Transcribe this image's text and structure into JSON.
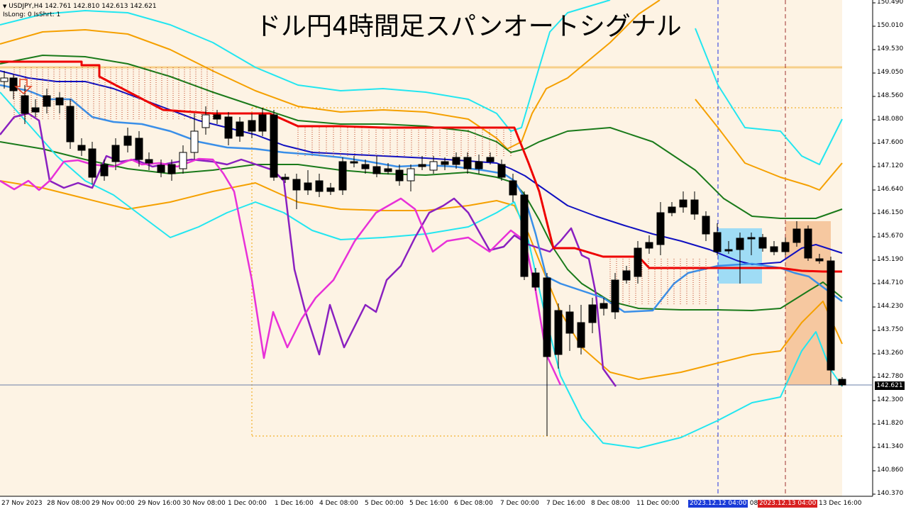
{
  "header": {
    "symbol_line": "USDJPY,H4  142.761 142.810 142.613 142.621",
    "flags_line": "IsLong: 0 IsShrt: 1",
    "title": "ドル円4時間足スパンオートシグナル"
  },
  "price_axis": {
    "labels": [
      "150.490",
      "150.010",
      "149.530",
      "149.050",
      "148.560",
      "148.080",
      "147.600",
      "147.120",
      "146.640",
      "146.150",
      "145.670",
      "145.190",
      "144.710",
      "144.230",
      "143.750",
      "143.260",
      "142.780",
      "142.300",
      "141.820",
      "141.340",
      "140.860",
      "140.370"
    ],
    "current_price": "142.621"
  },
  "time_axis": {
    "labels": [
      "27 Nov 2023",
      "28 Nov 08:00",
      "29 Nov 00:00",
      "29 Nov 16:00",
      "30 Nov 08:00",
      "1 Dec 00:00",
      "1 Dec 16:00",
      "4 Dec 08:00",
      "5 Dec 00:00",
      "5 Dec 16:00",
      "6 Dec 08:00",
      "7 Dec 00:00",
      "7 Dec 16:00",
      "8 Dec 08:00",
      "11 Dec 00:00",
      "11",
      "c 08",
      "13 Dec 16:00"
    ],
    "marker_blue": "2023.12.12 04:00",
    "marker_red": "2023.12.13 04:00"
  },
  "colors": {
    "background": "#fdf3e4",
    "bull_candle": "#ffffff",
    "bear_candle": "#000000",
    "conversion_red": "#ee0000",
    "ma_blue": "#1010c0",
    "ma_lightblue": "#3a8fe8",
    "band_green": "#1a7a1a",
    "band_orange": "#f5a000",
    "band_cyan": "#22e6f0",
    "oscillator_purple": "#8a20c0",
    "oscillator_magenta": "#e830d8",
    "box_blue": "#9fdcf5",
    "box_orange": "#f6c8a0"
  }
}
